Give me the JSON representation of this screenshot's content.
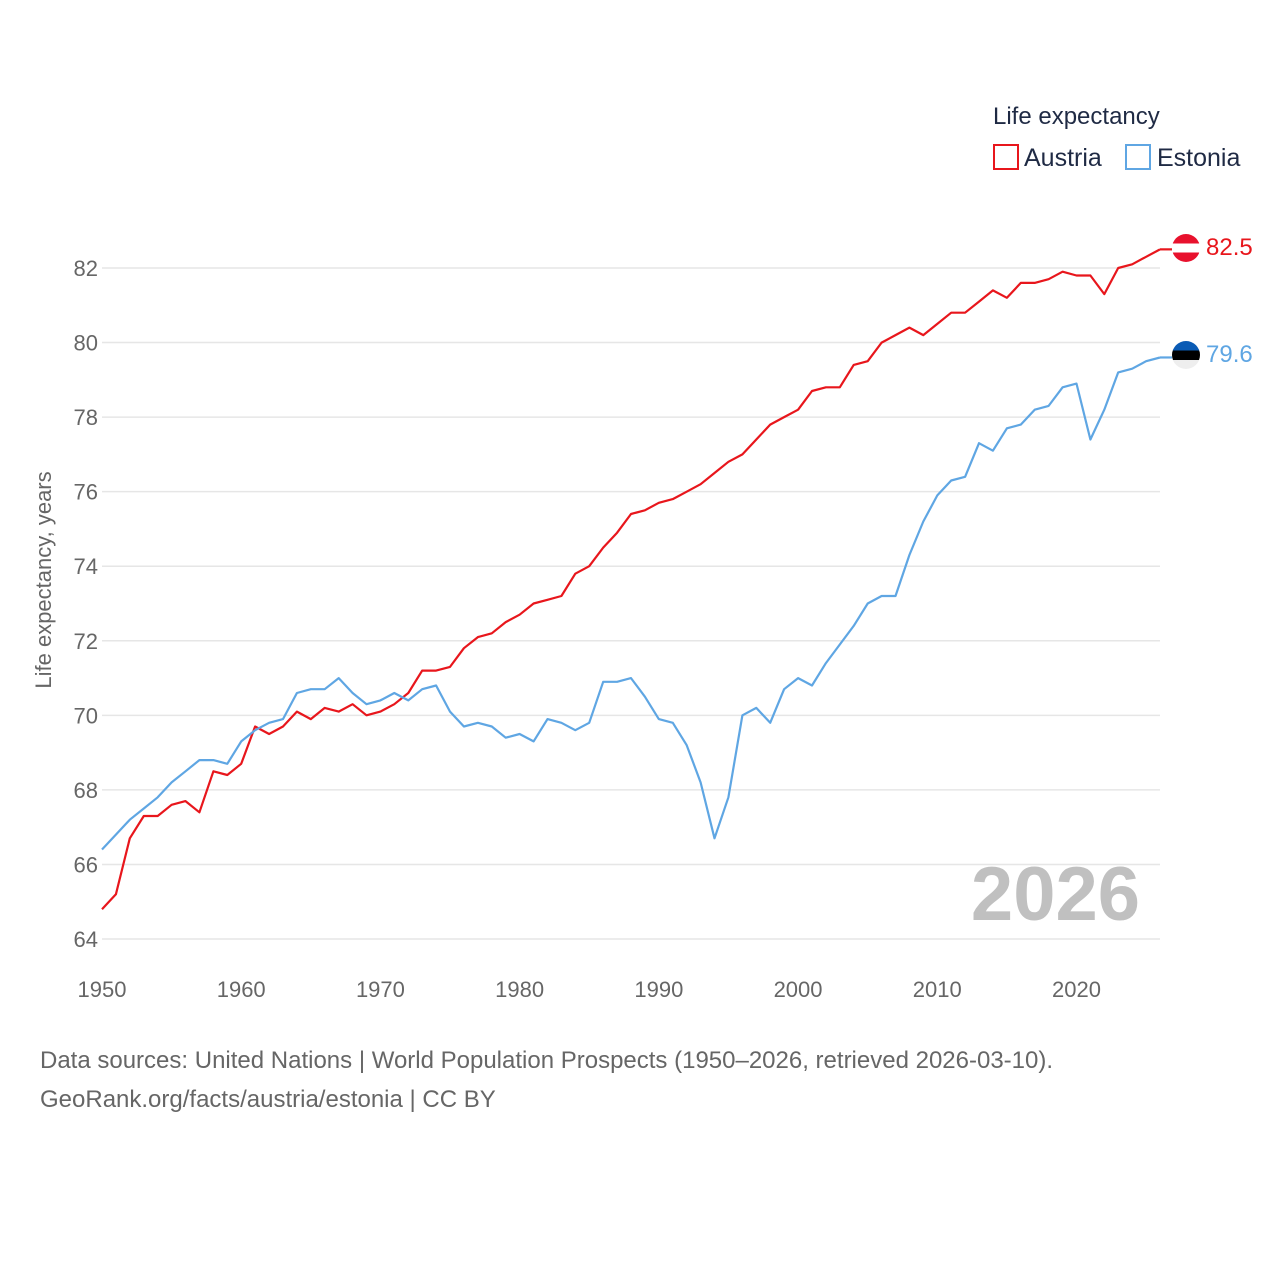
{
  "legend": {
    "title": "Life expectancy",
    "austria": "Austria",
    "estonia": "Estonia"
  },
  "year_watermark": "2026",
  "end_labels": {
    "austria": "82.5",
    "estonia": "79.6"
  },
  "footer": {
    "line1": "Data sources: United Nations | World Population Prospects (1950–2026, retrieved 2026-03-10).",
    "line2": "GeoRank.org/facts/austria/estonia | CC BY"
  },
  "colors": {
    "austria": "#e8161c",
    "estonia": "#5fa6e3",
    "grid": "#e6e6e6"
  },
  "chart_data": {
    "type": "line",
    "ylabel": "Life expectancy, years",
    "xlabel": "",
    "ylim": [
      64,
      82.5
    ],
    "xlim": [
      1950,
      2026
    ],
    "yticks": [
      64,
      66,
      68,
      70,
      72,
      74,
      76,
      78,
      80,
      82
    ],
    "xticks": [
      1950,
      1960,
      1970,
      1980,
      1990,
      2000,
      2010,
      2020
    ],
    "legend_position": "top-right",
    "series": [
      {
        "name": "Austria",
        "color": "#e8161c",
        "start_year": 1950,
        "values": [
          64.8,
          65.2,
          66.7,
          67.3,
          67.3,
          67.6,
          67.7,
          67.4,
          68.5,
          68.4,
          68.7,
          69.7,
          69.5,
          69.7,
          70.1,
          69.9,
          70.2,
          70.1,
          70.3,
          70.0,
          70.1,
          70.3,
          70.6,
          71.2,
          71.2,
          71.3,
          71.8,
          72.1,
          72.2,
          72.5,
          72.7,
          73.0,
          73.1,
          73.2,
          73.8,
          74.0,
          74.5,
          74.9,
          75.4,
          75.5,
          75.7,
          75.8,
          76.0,
          76.2,
          76.5,
          76.8,
          77.0,
          77.4,
          77.8,
          78.0,
          78.2,
          78.7,
          78.8,
          78.8,
          79.4,
          79.5,
          80.0,
          80.2,
          80.4,
          80.2,
          80.5,
          80.8,
          80.8,
          81.1,
          81.4,
          81.2,
          81.6,
          81.6,
          81.7,
          81.9,
          81.8,
          81.8,
          81.3,
          82.0,
          82.1,
          82.3,
          82.5
        ]
      },
      {
        "name": "Estonia",
        "color": "#5fa6e3",
        "start_year": 1950,
        "values": [
          66.4,
          66.8,
          67.2,
          67.5,
          67.8,
          68.2,
          68.5,
          68.8,
          68.8,
          68.7,
          69.3,
          69.6,
          69.8,
          69.9,
          70.6,
          70.7,
          70.7,
          71.0,
          70.6,
          70.3,
          70.4,
          70.6,
          70.4,
          70.7,
          70.8,
          70.1,
          69.7,
          69.8,
          69.7,
          69.4,
          69.5,
          69.3,
          69.9,
          69.8,
          69.6,
          69.8,
          70.9,
          70.9,
          71.0,
          70.5,
          69.9,
          69.8,
          69.2,
          68.2,
          66.7,
          67.8,
          70.0,
          70.2,
          69.8,
          70.7,
          71.0,
          70.8,
          71.4,
          71.9,
          72.4,
          73.0,
          73.2,
          73.2,
          74.3,
          75.2,
          75.9,
          76.3,
          76.4,
          77.3,
          77.1,
          77.7,
          77.8,
          78.2,
          78.3,
          78.8,
          78.9,
          77.4,
          78.2,
          79.2,
          79.3,
          79.5,
          79.6
        ]
      }
    ]
  }
}
